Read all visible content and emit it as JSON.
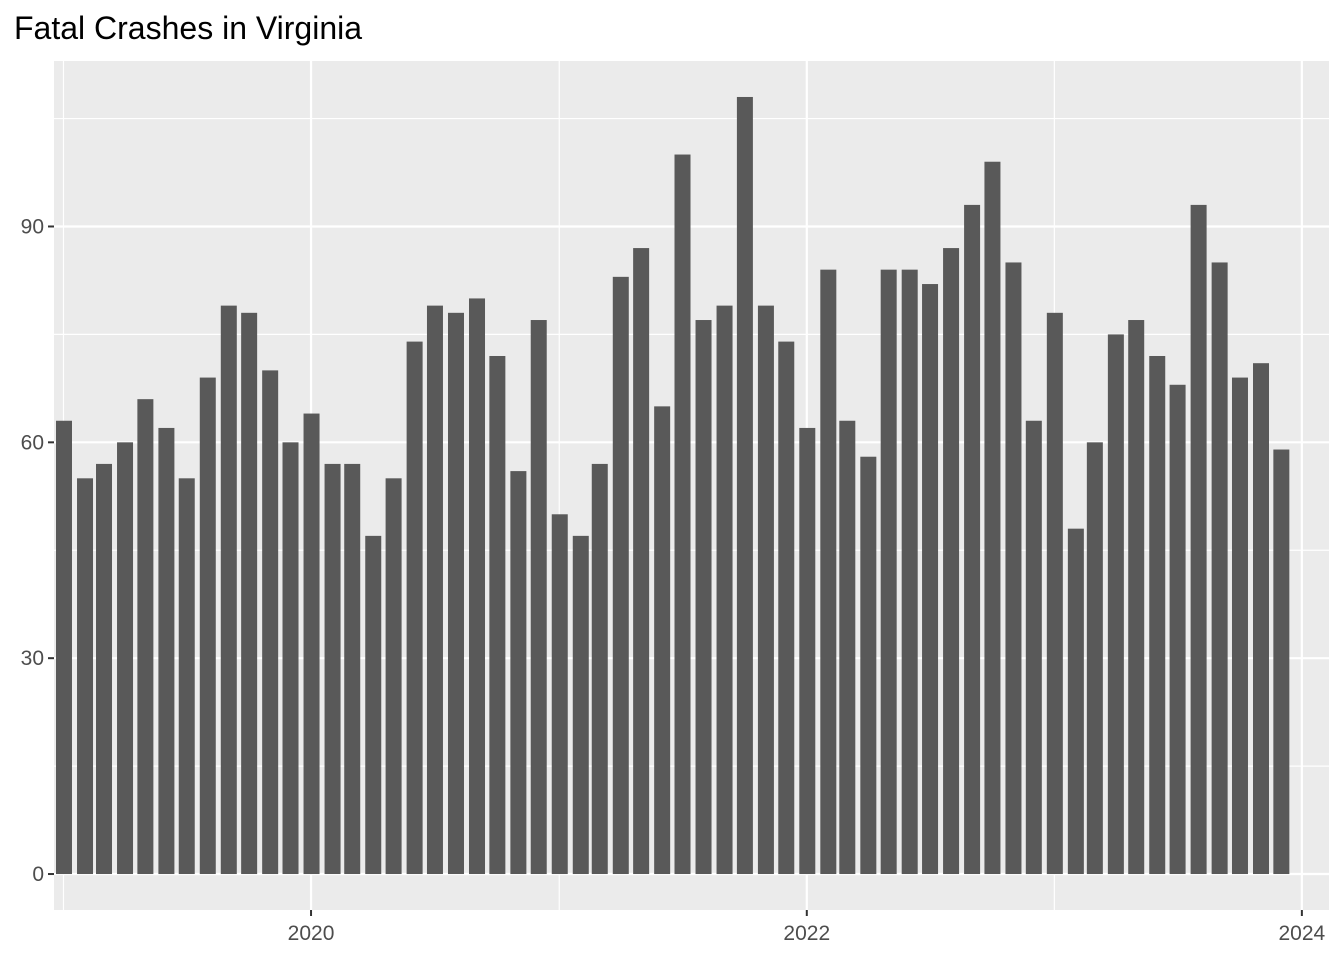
{
  "chart_data": {
    "type": "bar",
    "title": "Fatal Crashes in Virginia",
    "xlabel": "",
    "ylabel": "",
    "x_tick_labels": [
      "2020",
      "2022",
      "2024"
    ],
    "y_tick_labels": [
      "0",
      "30",
      "60",
      "90"
    ],
    "y_ticks": [
      0,
      30,
      60,
      90
    ],
    "ylim": [
      -5,
      113
    ],
    "xlim": [
      "2018-12-18",
      "2024-02-10"
    ],
    "grid": true,
    "legend": "none",
    "bar_color": "#595959",
    "panel_color": "#ebebeb",
    "categories": [
      "2019-01",
      "2019-02",
      "2019-03",
      "2019-04",
      "2019-05",
      "2019-06",
      "2019-07",
      "2019-08",
      "2019-09",
      "2019-10",
      "2019-11",
      "2019-12",
      "2020-01",
      "2020-02",
      "2020-03",
      "2020-04",
      "2020-05",
      "2020-06",
      "2020-07",
      "2020-08",
      "2020-09",
      "2020-10",
      "2020-11",
      "2020-12",
      "2021-01",
      "2021-02",
      "2021-03",
      "2021-04",
      "2021-05",
      "2021-06",
      "2021-07",
      "2021-08",
      "2021-09",
      "2021-10",
      "2021-11",
      "2021-12",
      "2022-01",
      "2022-02",
      "2022-03",
      "2022-04",
      "2022-05",
      "2022-06",
      "2022-07",
      "2022-08",
      "2022-09",
      "2022-10",
      "2022-11",
      "2022-12",
      "2023-01",
      "2023-02",
      "2023-03",
      "2023-04",
      "2023-05",
      "2023-06",
      "2023-07",
      "2023-08",
      "2023-09",
      "2023-10",
      "2023-11",
      "2023-12"
    ],
    "values": [
      63,
      55,
      57,
      60,
      66,
      62,
      55,
      69,
      79,
      78,
      70,
      60,
      64,
      57,
      57,
      47,
      55,
      74,
      79,
      78,
      80,
      72,
      56,
      77,
      50,
      47,
      57,
      83,
      87,
      65,
      100,
      77,
      79,
      108,
      79,
      74,
      62,
      84,
      63,
      58,
      84,
      84,
      82,
      87,
      93,
      99,
      85,
      63,
      78,
      48,
      60,
      75,
      77,
      72,
      68,
      93,
      85,
      69,
      71,
      59
    ]
  }
}
